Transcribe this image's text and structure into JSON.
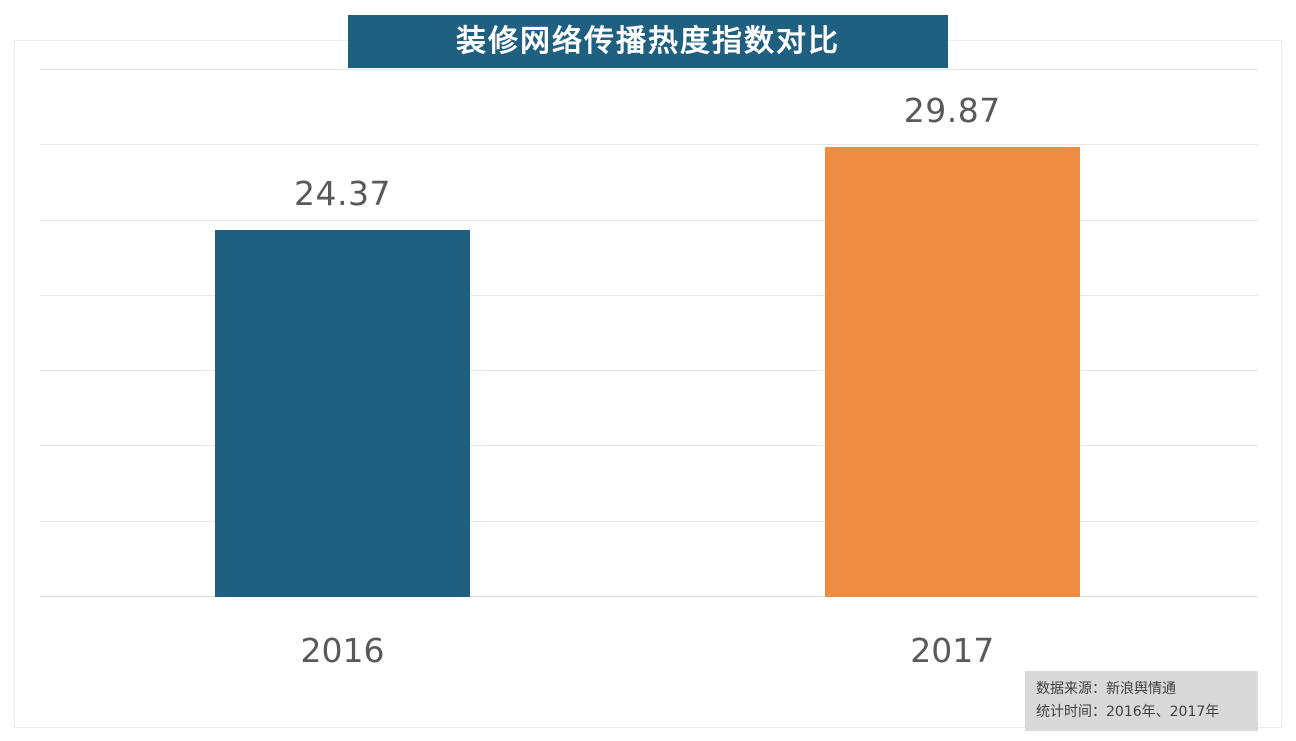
{
  "title": "装修网络传播热度指数对比",
  "chart_data": {
    "type": "bar",
    "title": "装修网络传播热度指数对比",
    "categories": [
      "2016",
      "2017"
    ],
    "values": [
      24.37,
      29.87
    ],
    "value_labels": [
      "24.37",
      "29.87"
    ],
    "xlabel": "",
    "ylabel": "",
    "ylim": [
      0,
      35
    ],
    "grid_step": 5,
    "grid": true,
    "legend": "none",
    "bar_colors": [
      "#1f5f80",
      "#ef8c43"
    ]
  },
  "source_note": {
    "line1": "数据来源：新浪舆情通",
    "line2": "统计时间：2016年、2017年"
  },
  "colors": {
    "banner_bg": "#1f5f80",
    "bar_2016": "#1f5f80",
    "bar_2017": "#ef8c43",
    "grid": "#e7e7e7",
    "label_text": "#595959",
    "source_bg": "#d9d9d9",
    "source_text": "#3f3f3f"
  }
}
